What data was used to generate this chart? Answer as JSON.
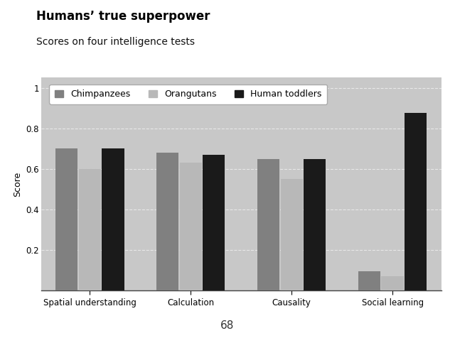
{
  "title": "Humans’ true superpower",
  "subtitle": "Scores on four intelligence tests",
  "page_number": "68",
  "categories": [
    "Spatial understanding",
    "Calculation",
    "Causality",
    "Social learning"
  ],
  "series": [
    {
      "label": "Chimpanzees",
      "color": "#808080",
      "values": [
        0.7,
        0.68,
        0.65,
        0.095
      ]
    },
    {
      "label": "Orangutans",
      "color": "#b8b8b8",
      "values": [
        0.6,
        0.63,
        0.55,
        0.07
      ]
    },
    {
      "label": "Human toddlers",
      "color": "#1a1a1a",
      "values": [
        0.7,
        0.67,
        0.65,
        0.875
      ]
    }
  ],
  "ylim": [
    0,
    1.05
  ],
  "yticks": [
    0.2,
    0.4,
    0.6,
    0.8,
    1.0
  ],
  "ytick_labels": [
    "0.2",
    "0.4",
    "0.6",
    "0.8",
    "1"
  ],
  "ylabel": "Score",
  "bar_width": 0.22,
  "group_centers": [
    0.0,
    1.0,
    2.0,
    3.0
  ],
  "plot_bg_color": "#c8c8c8",
  "fig_bg_color": "#ffffff",
  "grid_color": "#e8e8e8",
  "title_fontsize": 12,
  "subtitle_fontsize": 10,
  "axis_fontsize": 8.5,
  "legend_fontsize": 9,
  "ylabel_fontsize": 9
}
